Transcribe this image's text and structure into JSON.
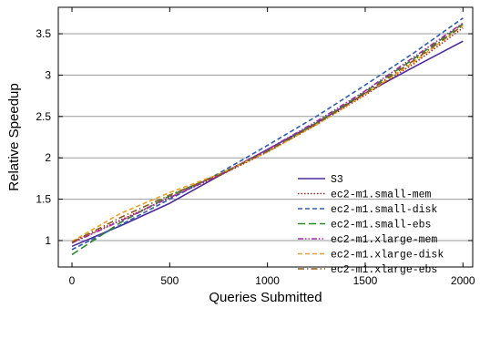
{
  "chart_data": {
    "type": "line",
    "title": "",
    "xlabel": "Queries Submitted",
    "ylabel": "Relative Speedup",
    "xlim": [
      -70,
      2050
    ],
    "ylim": [
      0.68,
      3.82
    ],
    "xticks": [
      0,
      500,
      1000,
      1500,
      2000
    ],
    "xtick_labels": [
      "0",
      "500",
      "1000",
      "1500",
      "2000"
    ],
    "yticks": [
      1,
      1.5,
      2,
      2.5,
      3,
      3.5
    ],
    "ytick_labels": [
      "1",
      "1.5",
      "2",
      "2.5",
      "3",
      "3.5"
    ],
    "grid": "horizontal",
    "legend_position": "lower-right",
    "series": [
      {
        "name": "S3",
        "color": "#4b2aa0",
        "dash": "solid",
        "x": [
          0,
          250,
          500,
          750,
          1000,
          1250,
          1500,
          1750,
          2000
        ],
        "y": [
          0.93,
          1.18,
          1.45,
          1.78,
          2.1,
          2.42,
          2.78,
          3.1,
          3.41
        ]
      },
      {
        "name": "ec2-m1.small-mem",
        "color": "#a0281e",
        "dash": "dot",
        "x": [
          0,
          250,
          500,
          750,
          1000,
          1250,
          1500,
          1750,
          2000
        ],
        "y": [
          0.98,
          1.25,
          1.52,
          1.78,
          2.07,
          2.4,
          2.76,
          3.14,
          3.57
        ]
      },
      {
        "name": "ec2-m1.small-disk",
        "color": "#2e5db2",
        "dash": "dash",
        "x": [
          0,
          250,
          500,
          750,
          1000,
          1250,
          1500,
          1750,
          2000
        ],
        "y": [
          0.89,
          1.19,
          1.5,
          1.81,
          2.15,
          2.5,
          2.88,
          3.27,
          3.69
        ]
      },
      {
        "name": "ec2-m1.small-ebs",
        "color": "#2a8a2a",
        "dash": "longdash",
        "x": [
          0,
          250,
          500,
          750,
          1000,
          1250,
          1500,
          1750,
          2000
        ],
        "y": [
          0.83,
          1.22,
          1.54,
          1.8,
          2.08,
          2.42,
          2.8,
          3.2,
          3.62
        ]
      },
      {
        "name": "ec2-m1.xlarge-mem",
        "color": "#a62aa6",
        "dash": "dashdotdot",
        "x": [
          0,
          250,
          500,
          750,
          1000,
          1250,
          1500,
          1750,
          2000
        ],
        "y": [
          0.97,
          1.24,
          1.52,
          1.79,
          2.1,
          2.44,
          2.81,
          3.22,
          3.63
        ]
      },
      {
        "name": "ec2-m1.xlarge-disk",
        "color": "#f0a020",
        "dash": "dash",
        "x": [
          0,
          250,
          500,
          750,
          1000,
          1250,
          1500,
          1750,
          2000
        ],
        "y": [
          0.99,
          1.33,
          1.58,
          1.8,
          2.07,
          2.4,
          2.77,
          3.16,
          3.6
        ]
      },
      {
        "name": "ec2-m1.xlarge-ebs",
        "color": "#8a5a1e",
        "dash": "dashdot",
        "x": [
          0,
          250,
          500,
          750,
          1000,
          1250,
          1500,
          1750,
          2000
        ],
        "y": [
          0.98,
          1.28,
          1.55,
          1.79,
          2.08,
          2.41,
          2.78,
          3.18,
          3.6
        ]
      }
    ]
  }
}
